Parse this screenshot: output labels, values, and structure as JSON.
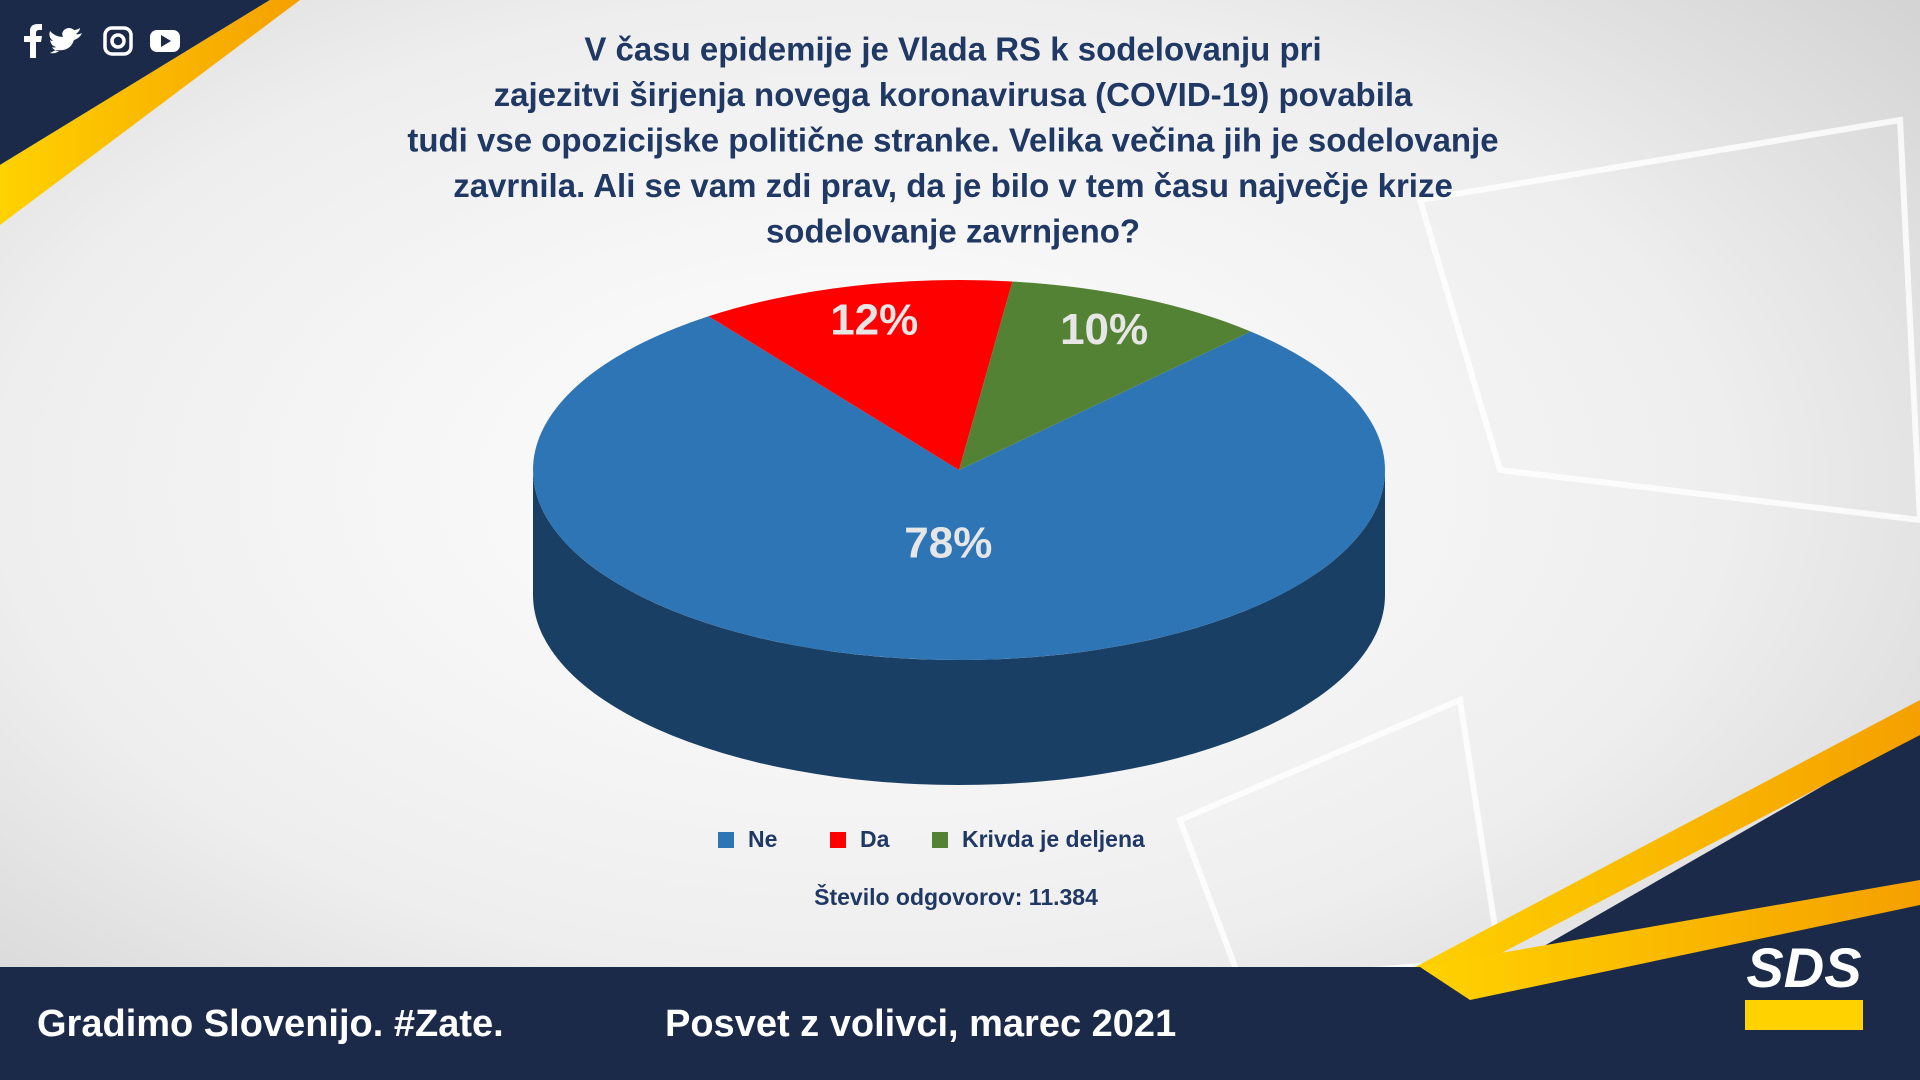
{
  "chart_data": {
    "type": "pie",
    "title": [
      "V času epidemije je Vlada RS k sodelovanju pri",
      "zajezitvi širjenja novega koronavirusa (COVID-19) povabila",
      "tudi vse opozicijske politične stranke. Velika večina jih je sodelovanje",
      "zavrnila. Ali se vam zdi prav, da je bilo v tem času največje krize",
      "sodelovanje zavrnjeno?"
    ],
    "categories": [
      "Ne",
      "Da",
      "Krivda je deljena"
    ],
    "values": [
      78,
      12,
      10
    ],
    "value_labels": [
      "78%",
      "12%",
      "10%"
    ],
    "colors": [
      "#2e75b6",
      "#ff0000",
      "#548235"
    ],
    "legend": "bottom",
    "annotation": "Število odgovorov: 11.384"
  },
  "footer": {
    "slogan": "Gradimo Slovenijo. #Zate.",
    "source": "Posvet z volivci, marec 2021"
  },
  "logo": "SDS"
}
